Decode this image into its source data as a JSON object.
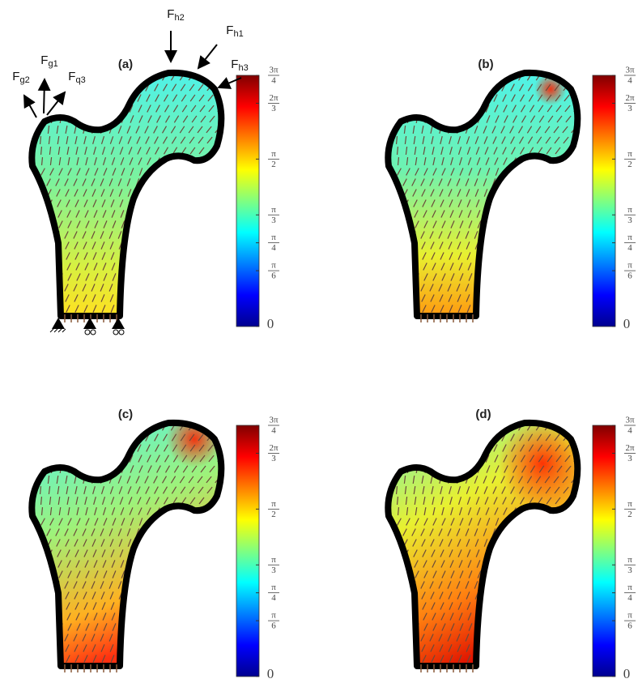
{
  "figure": {
    "panels": [
      {
        "label": "(a)"
      },
      {
        "label": "(b)"
      },
      {
        "label": "(c)"
      },
      {
        "label": "(d)"
      }
    ],
    "colorbar": {
      "lim": [
        0,
        2.3562
      ],
      "colors": [
        "#00008f",
        "#0000ff",
        "#0080ff",
        "#00ffff",
        "#80ff80",
        "#ffff00",
        "#ff8000",
        "#ff0000",
        "#800000"
      ],
      "ticks": [
        {
          "value": 0,
          "label": "0"
        },
        {
          "value": 0.5236,
          "numerator": "π",
          "denominator": "6"
        },
        {
          "value": 0.7854,
          "numerator": "π",
          "denominator": "4"
        },
        {
          "value": 1.0472,
          "numerator": "π",
          "denominator": "3"
        },
        {
          "value": 1.5708,
          "numerator": "π",
          "denominator": "2"
        },
        {
          "value": 2.0944,
          "numerator": "2π",
          "denominator": "3"
        },
        {
          "value": 2.3562,
          "numerator": "3π",
          "denominator": "4"
        }
      ]
    },
    "forces": [
      {
        "label": "F",
        "subscript": "h2"
      },
      {
        "label": "F",
        "subscript": "h1"
      },
      {
        "label": "F",
        "subscript": "h3"
      },
      {
        "label": "F",
        "subscript": "g1"
      },
      {
        "label": "F",
        "subscript": "g2"
      },
      {
        "label": "F",
        "subscript": "q3"
      }
    ]
  }
}
